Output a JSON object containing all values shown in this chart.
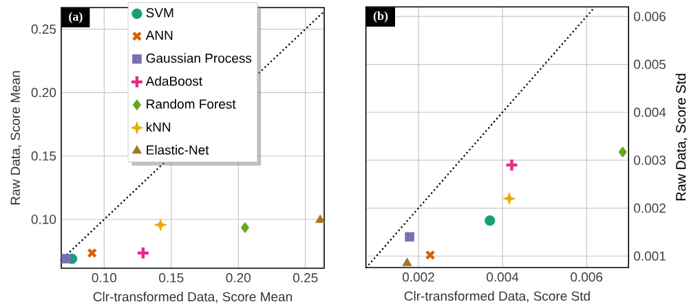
{
  "chart_data": [
    {
      "type": "scatter",
      "xlabel": "Clr-transformed Data, Score Mean",
      "ylabel": "Raw Data, Score Mean",
      "annotations": [
        "(a)"
      ],
      "xlim": [
        0.068,
        0.264
      ],
      "ylim": [
        0.0615,
        0.267
      ],
      "xticks": [
        {
          "value": 0.1,
          "label": "0.10"
        },
        {
          "value": 0.15,
          "label": "0.15"
        },
        {
          "value": 0.2,
          "label": "0.20"
        },
        {
          "value": 0.25,
          "label": "0.25"
        }
      ],
      "yticks": [
        {
          "value": 0.1,
          "label": "0.10"
        },
        {
          "value": 0.15,
          "label": "0.15"
        },
        {
          "value": 0.2,
          "label": "0.20"
        },
        {
          "value": 0.25,
          "label": "0.25"
        }
      ],
      "grid": true,
      "legend": "top",
      "series": [
        {
          "type": "line",
          "color": "#000000",
          "x": [
            0.068,
            0.264
          ],
          "values": [
            0.068,
            0.264
          ],
          "marker": "none",
          "line_style": "dotted"
        },
        {
          "name": "SVM",
          "color": "#1b9e77",
          "marker": "circle",
          "x": [
            0.076
          ],
          "values": [
            0.069
          ]
        },
        {
          "name": "ANN",
          "color": "#d95f02",
          "marker": "cross",
          "x": [
            0.091
          ],
          "values": [
            0.0735
          ]
        },
        {
          "name": "Gaussian Process",
          "color": "#7570b3",
          "marker": "square",
          "x": [
            0.0716
          ],
          "values": [
            0.069
          ]
        },
        {
          "name": "AdaBoost",
          "color": "#e7298a",
          "marker": "plus",
          "x": [
            0.129
          ],
          "values": [
            0.0735
          ]
        },
        {
          "name": "Random Forest",
          "color": "#66a61e",
          "marker": "diamond",
          "x": [
            0.205
          ],
          "values": [
            0.0935
          ]
        },
        {
          "name": "kNN",
          "color": "#e6ab02",
          "marker": "star",
          "x": [
            0.142
          ],
          "values": [
            0.0957
          ]
        },
        {
          "name": "Elastic-Net",
          "color": "#a6761d",
          "marker": "triangle",
          "x": [
            0.261
          ],
          "values": [
            0.0995
          ]
        }
      ]
    },
    {
      "type": "scatter",
      "xlabel": "Clr-transformed Data, Score Std",
      "y2label": "Raw Data, Score Std",
      "annotations": [
        "(b)"
      ],
      "xlim": [
        0.00075,
        0.007
      ],
      "y2lim": [
        0.00076,
        0.0062
      ],
      "xticks": [
        0.002,
        0.004,
        0.006
      ],
      "y2ticks": [
        0.001,
        0.002,
        0.003,
        0.004,
        0.005,
        0.006
      ],
      "grid": true,
      "series": [
        {
          "type": "line",
          "axis": "y2",
          "color": "#000000",
          "x": [
            0.00076,
            0.0062
          ],
          "values": [
            0.00076,
            0.0062
          ],
          "marker": "none",
          "line_style": "dotted"
        },
        {
          "axis": "y2",
          "color": "#1b9e77",
          "marker": "circle",
          "x": [
            0.0037
          ],
          "values": [
            0.00174
          ]
        },
        {
          "axis": "y2",
          "color": "#d95f02",
          "marker": "cross",
          "x": [
            0.00228
          ],
          "values": [
            0.00102
          ]
        },
        {
          "axis": "y2",
          "color": "#7570b3",
          "marker": "square",
          "x": [
            0.00179
          ],
          "values": [
            0.0014
          ]
        },
        {
          "axis": "y2",
          "color": "#e7298a",
          "marker": "plus",
          "x": [
            0.00422
          ],
          "values": [
            0.0029
          ]
        },
        {
          "axis": "y2",
          "color": "#66a61e",
          "marker": "diamond",
          "x": [
            0.00686
          ],
          "values": [
            0.00317
          ]
        },
        {
          "axis": "y2",
          "color": "#e6ab02",
          "marker": "star",
          "x": [
            0.00416
          ],
          "values": [
            0.0022
          ]
        },
        {
          "axis": "y2",
          "color": "#a6761d",
          "marker": "triangle",
          "x": [
            0.00173
          ],
          "values": [
            0.00085
          ]
        }
      ]
    }
  ]
}
